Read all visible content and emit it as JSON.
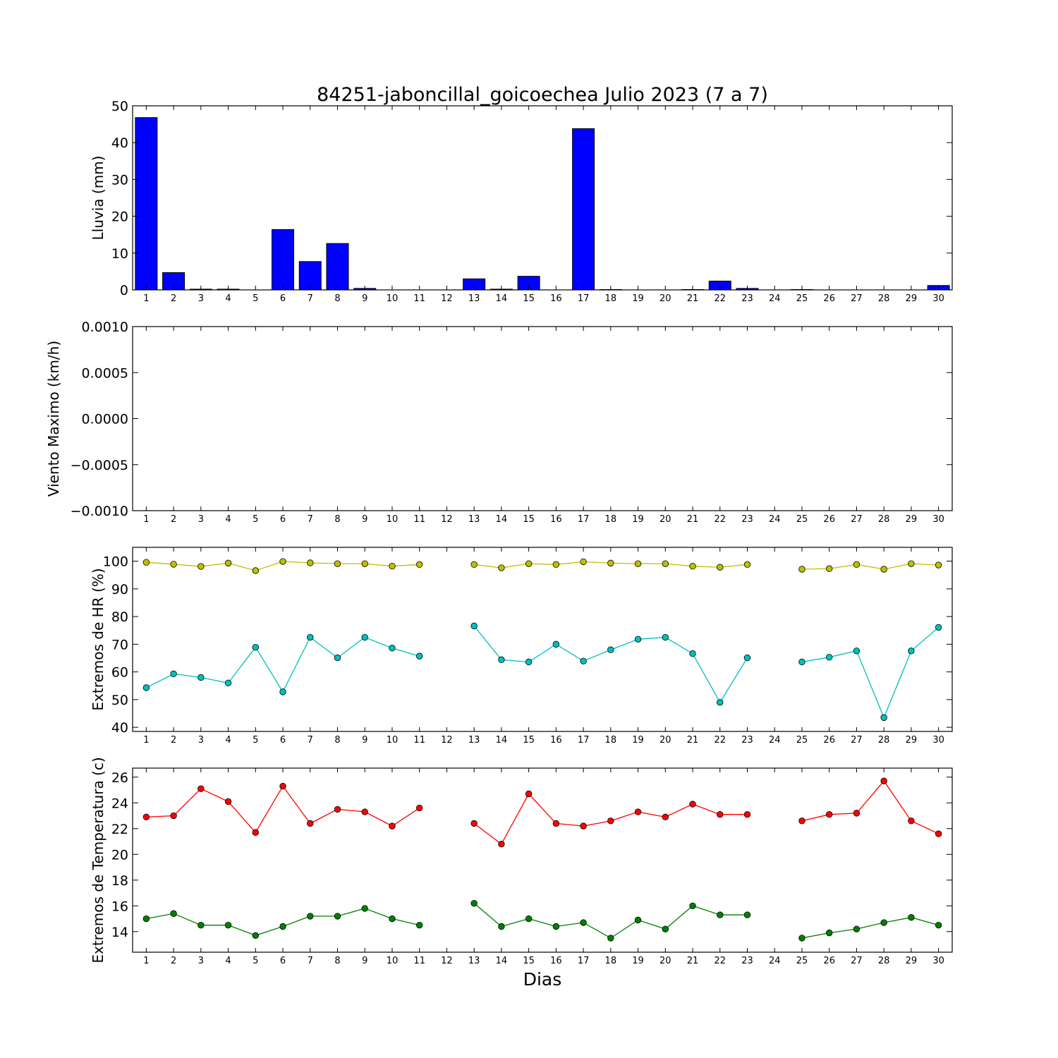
{
  "title": "84251-jaboncillal_goicoechea Julio 2023  (7 a 7)",
  "xlabel": "Dias",
  "days": [
    1,
    2,
    3,
    4,
    5,
    6,
    7,
    8,
    9,
    10,
    11,
    12,
    13,
    14,
    15,
    16,
    17,
    18,
    19,
    20,
    21,
    22,
    23,
    24,
    25,
    26,
    27,
    28,
    29,
    30
  ],
  "colors": {
    "rain": "#0000ff",
    "hr_max": "#bfbf00",
    "hr_min": "#00bfbf",
    "temp_max": "#ff0000",
    "temp_min": "#008000"
  },
  "chart_data": [
    {
      "type": "bar",
      "ylabel": "Lluvia (mm)",
      "ylim": [
        0,
        50
      ],
      "yticks": [
        0,
        10,
        20,
        30,
        40,
        50
      ],
      "ytick_labels": [
        "0",
        "10",
        "20",
        "30",
        "40",
        "50"
      ],
      "categories": [
        1,
        2,
        3,
        4,
        5,
        6,
        7,
        8,
        9,
        10,
        11,
        12,
        13,
        14,
        15,
        16,
        17,
        18,
        19,
        20,
        21,
        22,
        23,
        24,
        25,
        26,
        27,
        28,
        29,
        30
      ],
      "values": [
        46.8,
        4.7,
        0.2,
        0.2,
        0,
        16.4,
        7.7,
        12.6,
        0.4,
        0,
        0,
        0,
        3.0,
        0.2,
        3.7,
        0,
        43.8,
        0.1,
        0,
        0,
        0.1,
        2.4,
        0.4,
        0,
        0.1,
        0,
        0,
        0,
        0,
        1.2
      ]
    },
    {
      "type": "line",
      "ylabel": "Viento Maximo (km/h)",
      "ylim": [
        -0.001,
        0.001
      ],
      "yticks": [
        -0.001,
        -0.0005,
        0,
        0.0005,
        0.001
      ],
      "ytick_labels": [
        "−0.0010",
        "−0.0005",
        "0.0000",
        "0.0005",
        "0.0010"
      ],
      "series": []
    },
    {
      "type": "line",
      "ylabel": "Extremos de HR (%)",
      "ylim": [
        38.5,
        105
      ],
      "yticks": [
        40,
        50,
        60,
        70,
        80,
        90,
        100
      ],
      "ytick_labels": [
        "40",
        "50",
        "60",
        "70",
        "80",
        "90",
        "100"
      ],
      "series": [
        {
          "key": "hr_max",
          "values": [
            99.6,
            98.9,
            98.1,
            99.3,
            96.6,
            99.9,
            99.4,
            99.1,
            99.1,
            98.2,
            98.8,
            null,
            98.8,
            97.6,
            99.1,
            98.8,
            99.8,
            99.3,
            99.1,
            99.1,
            98.2,
            97.8,
            98.8,
            null,
            97.1,
            97.3,
            98.8,
            97.1,
            99.1,
            98.6
          ]
        },
        {
          "key": "hr_min",
          "values": [
            54.3,
            59.3,
            58.0,
            56.0,
            68.9,
            52.8,
            72.5,
            65.1,
            72.5,
            68.6,
            65.7,
            null,
            76.6,
            64.4,
            63.6,
            70.0,
            63.9,
            68.0,
            71.8,
            72.5,
            66.6,
            49.0,
            65.1,
            null,
            63.6,
            65.3,
            67.6,
            43.5,
            67.6,
            76.1
          ]
        }
      ]
    },
    {
      "type": "line",
      "ylabel": "Extremos de Temperatura (c)",
      "ylim": [
        12.4,
        26.7
      ],
      "yticks": [
        14,
        16,
        18,
        20,
        22,
        24,
        26
      ],
      "ytick_labels": [
        "14",
        "16",
        "18",
        "20",
        "22",
        "24",
        "26"
      ],
      "series": [
        {
          "key": "temp_max",
          "values": [
            22.9,
            23.0,
            25.1,
            24.1,
            21.7,
            25.3,
            22.4,
            23.5,
            23.3,
            22.2,
            23.6,
            null,
            22.4,
            20.8,
            24.7,
            22.4,
            22.2,
            22.6,
            23.3,
            22.9,
            23.9,
            23.1,
            23.1,
            null,
            22.6,
            23.1,
            23.2,
            25.7,
            22.6,
            21.6
          ]
        },
        {
          "key": "temp_min",
          "values": [
            15.0,
            15.4,
            14.5,
            14.5,
            13.7,
            14.4,
            15.2,
            15.2,
            15.8,
            15.0,
            14.5,
            null,
            16.2,
            14.4,
            15.0,
            14.4,
            14.7,
            13.5,
            14.9,
            14.2,
            16.0,
            15.3,
            15.3,
            null,
            13.5,
            13.9,
            14.2,
            14.7,
            15.1,
            14.5
          ]
        }
      ]
    }
  ]
}
